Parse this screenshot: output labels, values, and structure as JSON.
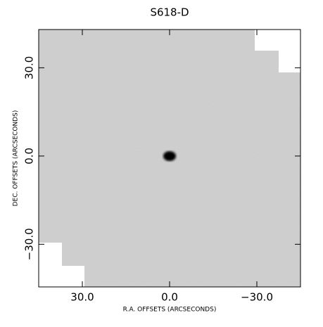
{
  "chart_data": {
    "type": "image",
    "title": "S618-D",
    "xlabel": "R.A. OFFSETS (ARCSECONDS)",
    "ylabel": "DEC. OFFSETS (ARCSECONDS)",
    "xlim": [
      45,
      -45
    ],
    "ylim": [
      -44.5,
      43
    ],
    "xticks": [
      {
        "value": 30,
        "label": "30.0"
      },
      {
        "value": 0,
        "label": "0.0"
      },
      {
        "value": -30,
        "label": "−30.0"
      }
    ],
    "yticks": [
      {
        "value": -30,
        "label": "−30.0"
      },
      {
        "value": 0,
        "label": "0.0"
      },
      {
        "value": 30,
        "label": "30.0"
      }
    ]
  }
}
